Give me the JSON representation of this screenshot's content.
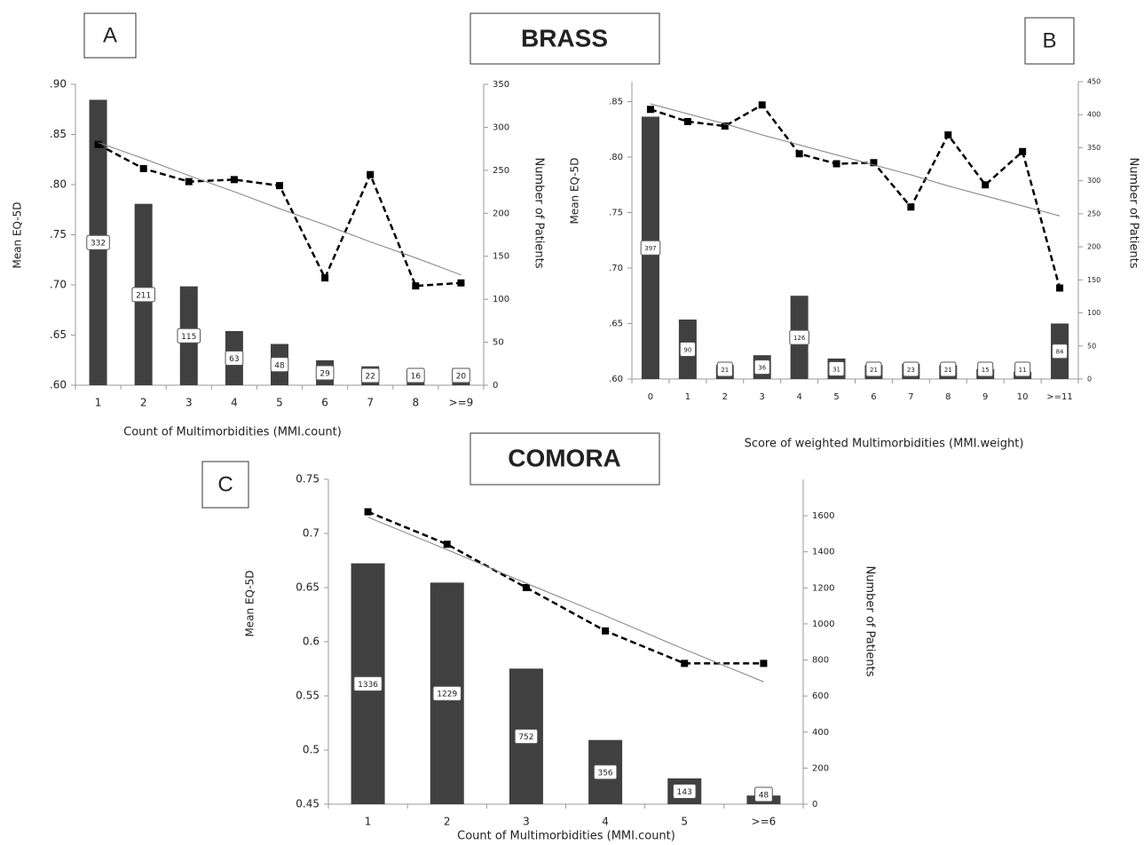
{
  "sections": [
    {
      "title": "BRASS"
    },
    {
      "title": "COMORA"
    }
  ],
  "chart_data": [
    {
      "type": "combo",
      "panel": "A",
      "x_label": "Count of Multimorbidities (MMI.count)",
      "y_label": "Mean EQ-5D",
      "y2_label": "Number of Patients",
      "categories": [
        "1",
        "2",
        "3",
        "4",
        "5",
        "6",
        "7",
        "8",
        ">=9"
      ],
      "series": [
        {
          "type": "bar",
          "axis": "y2",
          "color": "#404040",
          "values": [
            332,
            211,
            115,
            63,
            48,
            29,
            22,
            16,
            20
          ]
        },
        {
          "type": "line",
          "style": "dashed",
          "color": "#000000",
          "values": [
            0.84,
            0.816,
            0.803,
            0.805,
            0.799,
            0.707,
            0.81,
            0.699,
            0.702
          ]
        },
        {
          "type": "line",
          "style": "solid",
          "color": "#808080",
          "values": [
            0.842,
            0.826,
            0.809,
            0.793,
            0.776,
            0.76,
            0.743,
            0.727,
            0.71
          ]
        }
      ],
      "ylim": [
        0.6,
        0.9
      ],
      "yticks": [
        {
          "value": 0.6,
          "label": ".60"
        },
        {
          "value": 0.65,
          "label": ".65"
        },
        {
          "value": 0.7,
          "label": ".70"
        },
        {
          "value": 0.75,
          "label": ".75"
        },
        {
          "value": 0.8,
          "label": ".80"
        },
        {
          "value": 0.85,
          "label": ".85"
        },
        {
          "value": 0.9,
          "label": ".90"
        }
      ],
      "y2lim": [
        0,
        350
      ],
      "y2ticks": [
        0,
        50,
        100,
        150,
        200,
        250,
        300,
        350
      ]
    },
    {
      "type": "combo",
      "panel": "B",
      "x_label": "Score of weighted Multimorbidities (MMI.weight)",
      "y_label": "Mean EQ-5D",
      "y2_label": "Number of Patients",
      "categories": [
        "0",
        "1",
        "2",
        "3",
        "4",
        "5",
        "6",
        "7",
        "8",
        "9",
        "10",
        ">=11"
      ],
      "series": [
        {
          "type": "bar",
          "axis": "y2",
          "color": "#404040",
          "values": [
            397,
            90,
            21,
            36,
            126,
            31,
            21,
            23,
            21,
            15,
            11,
            84
          ]
        },
        {
          "type": "line",
          "style": "dashed",
          "color": "#000000",
          "values": [
            0.843,
            0.832,
            0.828,
            0.847,
            0.803,
            0.794,
            0.795,
            0.755,
            0.82,
            0.775,
            0.805,
            0.682
          ]
        },
        {
          "type": "line",
          "style": "solid",
          "color": "#808080",
          "values": [
            0.848,
            0.839,
            0.83,
            0.82,
            0.811,
            0.802,
            0.793,
            0.784,
            0.774,
            0.765,
            0.756,
            0.747
          ]
        }
      ],
      "ylim": [
        0.6,
        0.868
      ],
      "yticks": [
        {
          "value": 0.6,
          "label": ".60"
        },
        {
          "value": 0.65,
          "label": ".65"
        },
        {
          "value": 0.7,
          "label": ".70"
        },
        {
          "value": 0.75,
          "label": ".75"
        },
        {
          "value": 0.8,
          "label": ".80"
        },
        {
          "value": 0.85,
          "label": ".85"
        }
      ],
      "y2lim": [
        0,
        450
      ],
      "y2ticks": [
        0,
        50,
        100,
        150,
        200,
        250,
        300,
        350,
        400,
        450
      ]
    },
    {
      "type": "combo",
      "panel": "C",
      "x_label": "Count of Multimorbidities (MMI.count)",
      "y_label": "Mean EQ-5D",
      "y2_label": "Number of Patients",
      "categories": [
        "1",
        "2",
        "3",
        "4",
        "5",
        ">=6"
      ],
      "series": [
        {
          "type": "bar",
          "axis": "y2",
          "color": "#404040",
          "values": [
            1336,
            1229,
            752,
            356,
            143,
            48
          ]
        },
        {
          "type": "line",
          "style": "dashed",
          "color": "#000000",
          "values": [
            0.72,
            0.69,
            0.65,
            0.61,
            0.58,
            0.58
          ]
        },
        {
          "type": "line",
          "style": "solid",
          "color": "#808080",
          "values": [
            0.715,
            0.685,
            0.654,
            0.624,
            0.593,
            0.563
          ]
        }
      ],
      "ylim": [
        0.45,
        0.75
      ],
      "yticks": [
        0.45,
        0.5,
        0.55,
        0.6,
        0.65,
        0.7,
        0.75
      ],
      "y2lim": [
        0,
        1802
      ],
      "y2ticks": [
        0,
        200,
        400,
        600,
        800,
        1000,
        1200,
        1400,
        1600
      ]
    }
  ]
}
